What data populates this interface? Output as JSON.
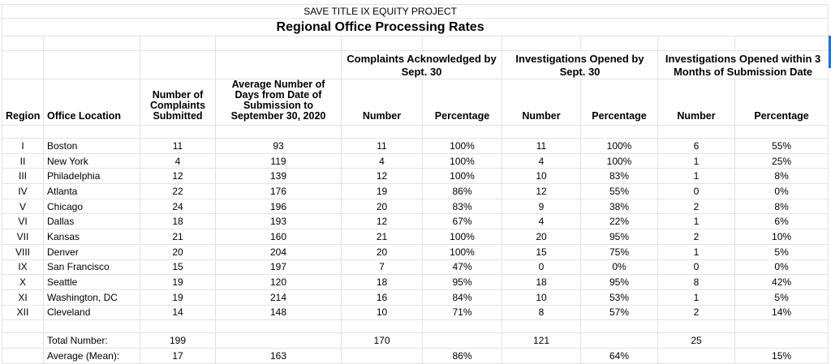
{
  "header": {
    "org": "SAVE TITLE IX EQUITY PROJECT",
    "title": "Regional Office Processing Rates"
  },
  "groups": [
    "Complaints Acknowledged by Sept. 30",
    "Investigations Opened by Sept. 30",
    "Investigations Opened within 3 Months of Submission Date"
  ],
  "columns": [
    "Region",
    "Office Location",
    "Number of Complaints Submitted",
    "Average Number of Days from Date of Submission to September 30, 2020",
    "Number",
    "Percentage",
    "Number",
    "Percentage",
    "Number",
    "Percentage"
  ],
  "rows": [
    [
      "I",
      "Boston",
      "11",
      "93",
      "11",
      "100%",
      "11",
      "100%",
      "6",
      "55%"
    ],
    [
      "II",
      "New York",
      "4",
      "119",
      "4",
      "100%",
      "4",
      "100%",
      "1",
      "25%"
    ],
    [
      "III",
      "Philadelphia",
      "12",
      "139",
      "12",
      "100%",
      "10",
      "83%",
      "1",
      "8%"
    ],
    [
      "IV",
      "Atlanta",
      "22",
      "176",
      "19",
      "86%",
      "12",
      "55%",
      "0",
      "0%"
    ],
    [
      "V",
      "Chicago",
      "24",
      "196",
      "20",
      "83%",
      "9",
      "38%",
      "2",
      "8%"
    ],
    [
      "VI",
      "Dallas",
      "18",
      "193",
      "12",
      "67%",
      "4",
      "22%",
      "1",
      "6%"
    ],
    [
      "VII",
      "Kansas",
      "21",
      "160",
      "21",
      "100%",
      "20",
      "95%",
      "2",
      "10%"
    ],
    [
      "VIII",
      "Denver",
      "20",
      "204",
      "20",
      "100%",
      "15",
      "75%",
      "1",
      "5%"
    ],
    [
      "IX",
      "San Francisco",
      "15",
      "197",
      "7",
      "47%",
      "0",
      "0%",
      "0",
      "0%"
    ],
    [
      "X",
      "Seattle",
      "19",
      "120",
      "18",
      "95%",
      "18",
      "95%",
      "8",
      "42%"
    ],
    [
      "XI",
      "Washington, DC",
      "19",
      "214",
      "16",
      "84%",
      "10",
      "53%",
      "1",
      "5%"
    ],
    [
      "XII",
      "Cleveland",
      "14",
      "148",
      "10",
      "71%",
      "8",
      "57%",
      "2",
      "14%"
    ]
  ],
  "totals": {
    "label": "Total Number:",
    "complaints": "199",
    "ack_number": "170",
    "inv_number": "121",
    "inv3_number": "25"
  },
  "average": {
    "label": "Average (Mean):",
    "complaints": "17",
    "days": "163",
    "ack_pct": "86%",
    "inv_pct": "64%",
    "inv3_pct": "15%"
  }
}
